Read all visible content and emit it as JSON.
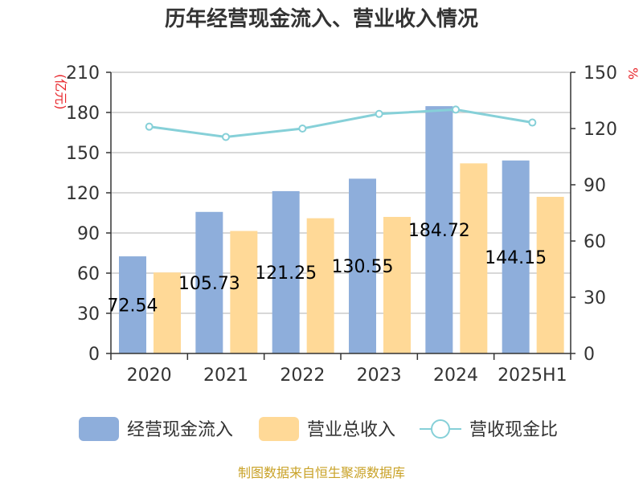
{
  "colors": {
    "cash_inflow": "#8eaedb",
    "revenue": "#ffd997",
    "ratio_line": "#86d0d8",
    "unit_text": "#e8262b",
    "source_text": "#c9a227",
    "grid": "#cccccc",
    "axis": "#333333"
  },
  "chart_data": {
    "type": "bar",
    "title": "历年经营现金流入、营业收入情况",
    "categories": [
      "2020",
      "2021",
      "2022",
      "2023",
      "2024",
      "2025H1"
    ],
    "left_axis": {
      "unit": "(亿元)",
      "ticks": [
        "0",
        "30",
        "60",
        "90",
        "120",
        "150",
        "180",
        "210"
      ],
      "ylim": [
        0,
        210
      ]
    },
    "right_axis": {
      "unit": "%",
      "ticks": [
        "0",
        "30",
        "60",
        "90",
        "120",
        "150"
      ],
      "ylim": [
        0,
        150
      ]
    },
    "grid": true,
    "legend_position": "bottom",
    "series": [
      {
        "name": "经营现金流入",
        "type": "bar",
        "axis": "left",
        "values": [
          72.54,
          105.73,
          121.25,
          130.55,
          184.72,
          144.15
        ],
        "labels": [
          "72.54",
          "105.73",
          "121.25",
          "130.55",
          "184.72",
          "144.15"
        ]
      },
      {
        "name": "营业总收入",
        "type": "bar",
        "axis": "left",
        "values": [
          60.5,
          91.5,
          101.0,
          102.0,
          142.0,
          117.0
        ]
      },
      {
        "name": "营收现金比",
        "type": "line",
        "axis": "right",
        "values": [
          121.0,
          115.5,
          120.0,
          127.8,
          130.1,
          123.2
        ]
      }
    ],
    "source": "制图数据来自恒生聚源数据库"
  }
}
